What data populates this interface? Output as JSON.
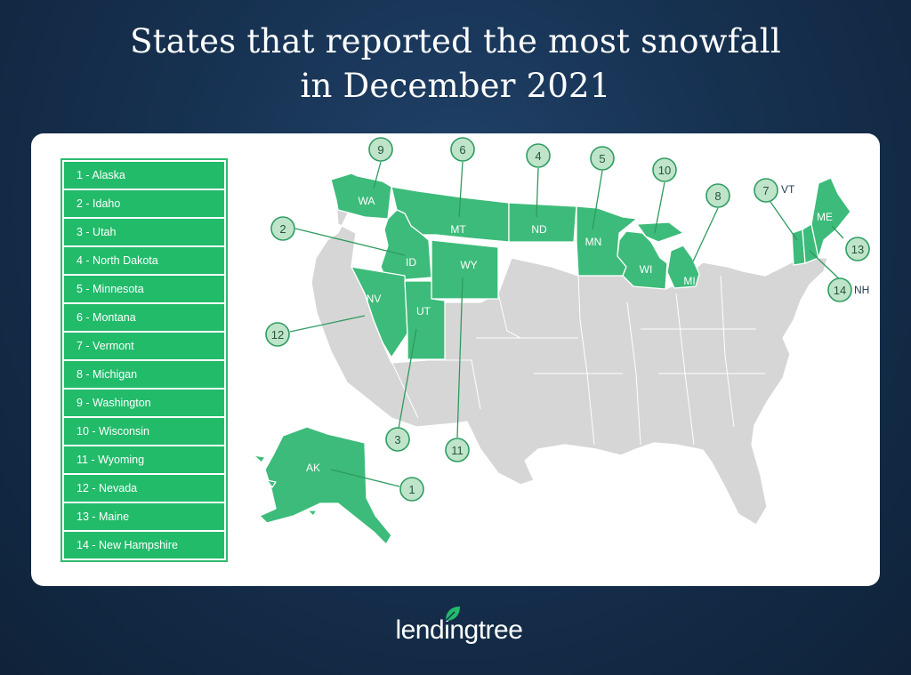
{
  "header": {
    "title_line1": "States that reported the most snowfall",
    "title_line2": "in December 2021"
  },
  "legend": {
    "items": [
      "1 - Alaska",
      "2 - Idaho",
      "3 - Utah",
      "4 - North Dakota",
      "5 - Minnesota",
      "6 - Montana",
      "7 - Vermont",
      "8 - Michigan",
      "9 - Washington",
      "10 - Wisconsin",
      "11 - Wyoming",
      "12 - Nevada",
      "13 - Maine",
      "14 - New Hampshire"
    ]
  },
  "map": {
    "highlight_color": "#3dbb7a",
    "base_color": "#d6d6d6",
    "state_labels": {
      "wa": "WA",
      "mt": "MT",
      "nd": "ND",
      "mn": "MN",
      "wi": "WI",
      "mi": "MI",
      "id": "ID",
      "wy": "WY",
      "nv": "NV",
      "ut": "UT",
      "me": "ME",
      "ak": "AK",
      "vt": "VT",
      "nh": "NH"
    },
    "markers": {
      "wa": "9",
      "mt": "6",
      "nd": "4",
      "mn": "5",
      "wi": "10",
      "mi": "8",
      "vt": "7",
      "me": "13",
      "nh": "14",
      "id": "2",
      "nv": "12",
      "ut": "3",
      "wy": "11",
      "ak": "1"
    }
  },
  "footer": {
    "brand": "lendingtree"
  }
}
